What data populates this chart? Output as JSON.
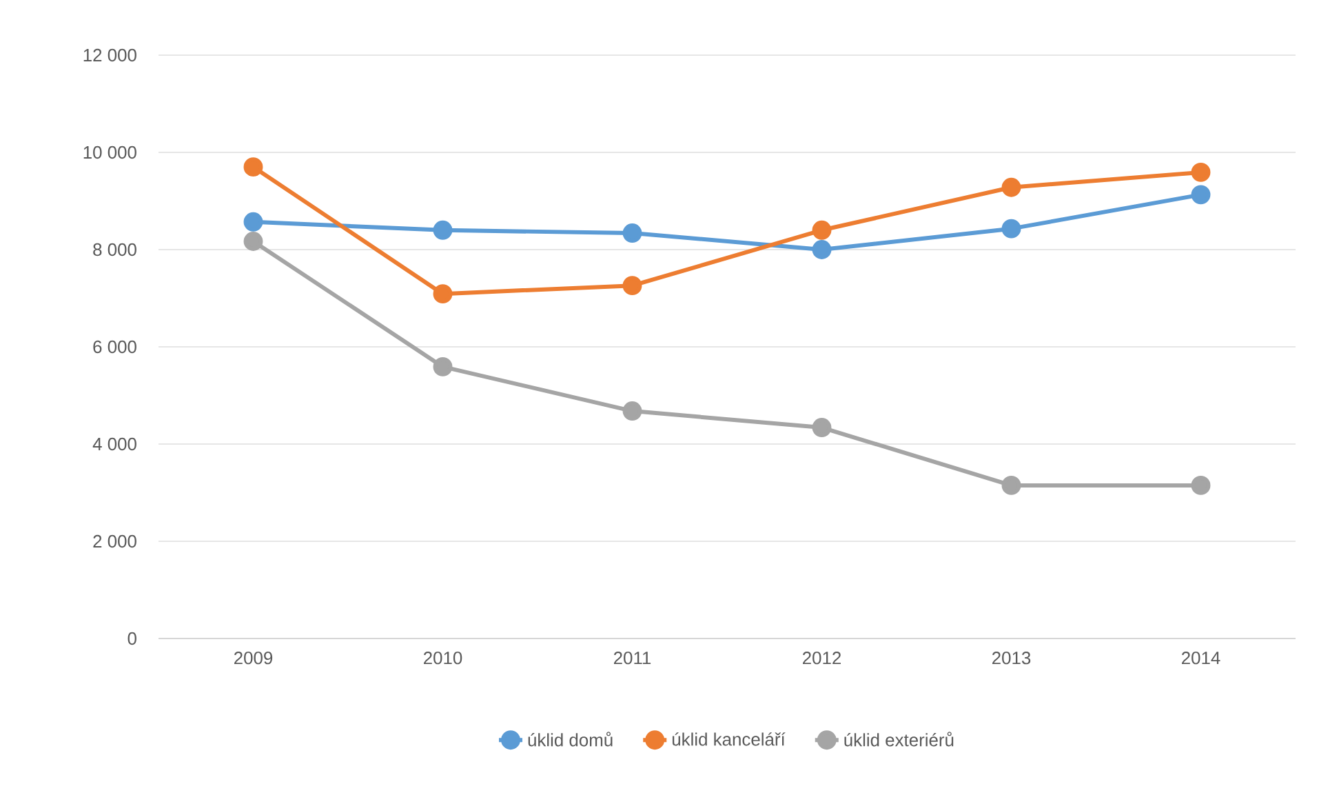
{
  "chart_data": {
    "type": "line",
    "categories": [
      "2009",
      "2010",
      "2011",
      "2012",
      "2013",
      "2014"
    ],
    "series": [
      {
        "name": "úklid domů",
        "color": "#5b9bd5",
        "values": [
          8570,
          8400,
          8340,
          8000,
          8430,
          9130
        ]
      },
      {
        "name": "úklid kanceláří",
        "color": "#ed7d31",
        "values": [
          9700,
          7090,
          7260,
          8400,
          9280,
          9590
        ]
      },
      {
        "name": "úklid exteriérů",
        "color": "#a5a5a5",
        "values": [
          8170,
          5590,
          4680,
          4340,
          3150,
          3150
        ]
      }
    ],
    "ylim": [
      0,
      12000
    ],
    "yticks": [
      {
        "value": 0,
        "label": "0"
      },
      {
        "value": 2000,
        "label": "2 000"
      },
      {
        "value": 4000,
        "label": "4 000"
      },
      {
        "value": 6000,
        "label": "6 000"
      },
      {
        "value": 8000,
        "label": "8 000"
      },
      {
        "value": 10000,
        "label": "10 000"
      },
      {
        "value": 12000,
        "label": "12 000"
      }
    ],
    "grid": "y",
    "legend": "bottom",
    "marker": "circle",
    "line_style": "solid"
  }
}
